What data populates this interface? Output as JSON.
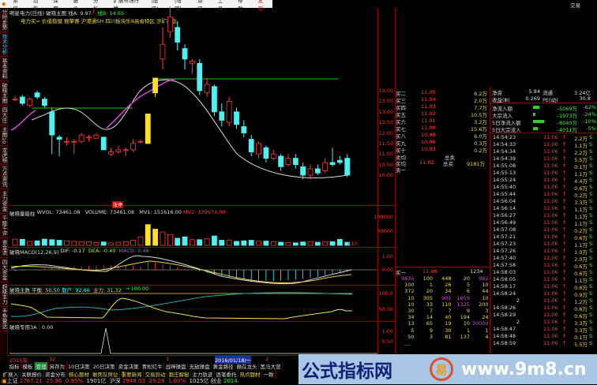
{
  "menu": [
    "系统",
    "功能",
    "深度",
    "报价",
    "分析",
    "扩展市场行情",
    "|股讯|",
    "|增强|",
    "资讯",
    "工具",
    "帮助",
    "发现"
  ],
  "menu_right": "交易",
  "sidebar": [
    "分时走势",
    "技术分析",
    "基本资料",
    "破晓主图",
    "四大庄",
    "主图10",
    "龙虎榜",
    "万点资讯",
    "主力资金",
    "千股千评",
    "资金流",
    "四大资金",
    "超级主力",
    "手势雷达"
  ],
  "chart": {
    "title": "明星电力(日线) 破晓主图",
    "lineA_label": "线A: 9.97",
    "lineB_label": "线B: 14.65",
    "tags": "电力买= 价值稳健 猴擎赛 沪港通SH 四川板块乐9高省特区 涉矿概念",
    "price_ticks": [
      "14.00",
      "13.50",
      "13.00",
      "12.50",
      "12.00",
      "11.50",
      "11.00",
      "10.50",
      "10.00"
    ],
    "candles": [
      [
        13.6,
        13.6,
        13.75,
        13.5
      ],
      [
        13.7,
        13.4,
        13.8,
        13.3
      ],
      [
        13.3,
        13.6,
        13.7,
        13.2
      ],
      [
        13.9,
        13.7,
        14.0,
        13.6
      ],
      [
        13.6,
        13.3,
        13.7,
        13.2
      ],
      [
        13.0,
        11.9,
        13.2,
        11.0
      ],
      [
        11.8,
        11.7,
        11.9,
        10.9
      ],
      [
        11.6,
        11.6,
        11.8,
        11.4
      ],
      [
        11.6,
        11.6,
        11.7,
        11.0
      ],
      [
        11.6,
        11.9,
        12.0,
        11.5
      ],
      [
        11.8,
        11.8,
        11.9,
        11.6
      ],
      [
        11.75,
        11.9,
        12.0,
        11.7
      ],
      [
        11.8,
        11.2,
        11.8,
        11.2
      ],
      [
        11.0,
        11.1,
        11.3,
        10.9
      ],
      [
        11.1,
        11.2,
        11.4,
        11.0
      ],
      [
        11.2,
        11.2,
        11.3,
        10.9
      ],
      [
        11.2,
        11.5,
        11.7,
        11.1
      ],
      [
        11.6,
        11.6,
        11.7,
        11.5
      ],
      [
        11.5,
        12.9,
        12.9,
        11.5,
        "y"
      ],
      [
        13.9,
        14.6,
        14.6,
        13.7,
        "y"
      ],
      [
        15.5,
        16.2,
        17.0,
        15.0
      ],
      [
        16.8,
        17.5,
        18.0,
        16.5
      ],
      [
        17.0,
        16.3,
        17.3,
        15.9
      ],
      [
        16.0,
        15.5,
        16.2,
        15.0
      ],
      [
        15.3,
        15.4,
        15.5,
        14.8
      ],
      [
        15.3,
        14.0,
        15.5,
        13.8
      ],
      [
        13.9,
        14.3,
        14.6,
        13.7
      ],
      [
        14.2,
        13.0,
        14.3,
        12.8
      ],
      [
        13.0,
        12.6,
        13.4,
        12.3
      ],
      [
        12.5,
        13.5,
        13.7,
        12.3
      ],
      [
        13.0,
        12.4,
        13.2,
        12.2
      ],
      [
        12.3,
        12.0,
        12.6,
        11.8
      ],
      [
        11.7,
        11.1,
        11.9,
        10.9
      ],
      [
        11.0,
        11.5,
        11.6,
        10.8
      ],
      [
        11.3,
        10.8,
        11.4,
        10.6
      ],
      [
        10.8,
        11.0,
        11.2,
        10.7
      ],
      [
        10.9,
        10.4,
        11.0,
        10.2
      ],
      [
        10.5,
        10.8,
        11.0,
        10.4
      ],
      [
        10.8,
        10.5,
        11.0,
        10.3
      ],
      [
        10.4,
        10.0,
        10.6,
        9.8
      ],
      [
        10.0,
        10.3,
        10.5,
        9.8
      ],
      [
        10.3,
        10.1,
        10.5,
        10.0
      ],
      [
        10.2,
        10.6,
        10.8,
        10.1
      ],
      [
        10.6,
        10.5,
        11.3,
        10.4
      ],
      [
        10.7,
        10.6,
        10.9,
        10.5
      ],
      [
        10.8,
        10.0,
        11.0,
        9.9
      ]
    ],
    "badge": "涨停"
  },
  "volume": {
    "name": "破晓量能柱",
    "wvol": "WVOL: 73461.08",
    "volume": "VOLUME: 73461.08",
    "mv1": "MV1: 151616.00",
    "mv2": "MV2: 139974.00",
    "ticks": [
      "100000",
      "50000",
      "X10"
    ],
    "values": [
      22000,
      21000,
      14000,
      16000,
      22000,
      20000,
      18000,
      16000,
      14000,
      13000,
      13000,
      10000,
      12000,
      9000,
      11000,
      13000,
      18000,
      30000,
      73000,
      57000,
      47000,
      38000,
      25000,
      30000,
      20000,
      20000,
      24000,
      33000,
      18000,
      19000,
      14000,
      16000,
      18000,
      14000,
      15000,
      13000,
      11000,
      10000,
      9000,
      12000,
      13000,
      11000,
      12000,
      13000,
      21000,
      11000
    ]
  },
  "macd": {
    "name": "破晓MACD(12,26,9)",
    "dif": "DIF: -0.17",
    "dea": "DEA: -0.40",
    "macd": "MACD: 0.46",
    "ticks": [
      "1.00",
      "0.00"
    ]
  },
  "main_force": {
    "name": "破晓主数",
    "balance": "平衡: 50.50",
    "retail": "散户: 92.66",
    "main": "主力: 31.32",
    "level": "→ 100.00",
    "ticks": [
      "100.0",
      "50.00"
    ]
  },
  "special": {
    "name": "破晓专用3A : 0.00",
    "ticks": [
      "1.00",
      "0.50"
    ]
  },
  "date_axis": [
    "2015年",
    ".12",
    "1",
    "2016/01/18/一",
    "2"
  ],
  "toolbar1": [
    "指标",
    "模板",
    "管理",
    "另存为",
    "10日决策",
    "20日决策",
    "资金决策",
    "青松红牛",
    "战神操盘",
    "无敌操盘",
    "黄金路径",
    "巅在龙头",
    "黑马大营"
  ],
  "toolbar2": [
    "扩展入",
    "关联报价",
    "资金分布",
    "核心题材",
    "敢死队席位",
    "重要新闻",
    "交易异动",
    "跟庄解秘",
    "主力轨迹",
    "逐笔委托",
    "热点题材",
    "一致"
  ],
  "status": {
    "sh_label": "上证",
    "sh_value": "2767.21",
    "sh_chg": "25.96",
    "sh_pct": "0.95%",
    "sh_amt": "1901亿",
    "hs_label": "沪深",
    "hs_value": "2948.03",
    "hs_chg": "29.28",
    "hs_pct": "1.00%",
    "hs_amt": "1025亿",
    "cy_label": "创业",
    "cy_value": "2014."
  },
  "orderbook": [
    [
      "买二",
      "11.05",
      "6.2万"
    ],
    [
      "买三",
      "11.04",
      "2.0万"
    ],
    [
      "买四",
      "11.03",
      "7.7万"
    ],
    [
      "买五",
      "11.02",
      "10.5万"
    ],
    [
      "买六",
      "11.01",
      "3.2万"
    ],
    [
      "买七",
      "11.00",
      "15.6万"
    ],
    [
      "买八",
      "10.99",
      "6.0万"
    ],
    [
      "买九",
      "10.96",
      "0.3万"
    ],
    [
      "买十",
      "10.93",
      "0.2万"
    ]
  ],
  "avg": {
    "sell_label": "卖均",
    "sell_total": "总卖",
    "buy_label": "买均",
    "buy_price": "11.02",
    "buy_total_label": "总买",
    "buy_total": "9181万",
    "sell1": "卖一"
  },
  "fund": {
    "rows": [
      [
        "净资",
        "5.84",
        "流通",
        "3.24亿"
      ],
      [
        "收益(Ⅲ)",
        "0.269",
        "PE(动)",
        "30.8"
      ]
    ],
    "flows": [
      [
        "净流入额",
        "-5069万",
        "-62%"
      ],
      [
        "大宗流入",
        "-1973万",
        "-24%"
      ],
      [
        "5日净流入额",
        "-8040万",
        "-10%"
      ],
      [
        "5日大宗流入",
        "-4011万",
        "-5%"
      ]
    ]
  },
  "ticks": [
    [
      "14:54:23",
      "11.06",
      "2.2万"
    ],
    [
      "14:54:33",
      "11.06",
      "1.1万"
    ],
    [
      "14:54:34",
      "11.06",
      "2.2万"
    ],
    [
      "14:54:39",
      "11.06",
      "5.5万"
    ],
    [
      "14:55:08",
      "11.06",
      "0.1万"
    ],
    [
      "14:55:13",
      "11.06",
      "1.1万"
    ],
    [
      "14:55:24",
      "11.06",
      "4.4万"
    ],
    [
      "14:55:40",
      "11.06",
      "0.6万"
    ],
    [
      "14:55:44",
      "11.06",
      "0.2万"
    ],
    [
      "14:56:04",
      "11.06",
      "3.3万"
    ],
    [
      "14:56:14",
      "11.06",
      "1.1万"
    ],
    [
      "14:56:27",
      "11.06",
      "1.1万"
    ],
    [
      "14:56:49",
      "11.06",
      "1.1万"
    ],
    [
      "14:57:08",
      "11.06",
      "0.2万"
    ],
    [
      "14:57:21",
      "11.06",
      "0.6万"
    ],
    [
      "14:57:23",
      "11.06",
      "1.1万"
    ],
    [
      "14:57:26",
      "11.06",
      "1.0万"
    ],
    [
      "14:57:40",
      "11.06",
      "2.0万"
    ],
    [
      "14:57:58",
      "11.06",
      "0.6万"
    ],
    [
      "14:58:03",
      "11.06",
      "0.6万"
    ],
    [
      "14:58:05",
      "11.06",
      "1.1万"
    ],
    [
      "14:58:17",
      "11.06",
      "0.6万"
    ],
    [
      "14:58:24",
      "11.06",
      "0.9万"
    ],
    [
      "2",
      "11.06",
      "1.2万"
    ],
    [
      "14:58:26",
      "11.06",
      "0.6万"
    ],
    [
      "14:58:29",
      "11.06",
      "0.6万"
    ],
    [
      "2",
      "11.06",
      "3.3万"
    ],
    [
      "14:58:47",
      "11.06",
      "3.3万"
    ],
    [
      "14:58:48",
      "11.06",
      "0.1万"
    ],
    [
      "14:58:59",
      "11.06",
      "5.5万"
    ]
  ],
  "tick_flag": "S",
  "queue": {
    "label": "买一",
    "price": "11.06",
    "total": "1234",
    "rows": [
      [
        "9835",
        "100",
        "448",
        "20",
        "982"
      ],
      [
        "100",
        "1",
        "26",
        "5",
        "10"
      ],
      [
        "372",
        "20",
        "34",
        "6",
        "44"
      ],
      [
        "10",
        "305",
        "901",
        "1859",
        "10"
      ],
      [
        "10",
        "33",
        "110",
        "1325",
        "200"
      ],
      [
        "30",
        "7",
        "7",
        "9",
        "3"
      ],
      [
        "34",
        "14",
        "40",
        "194",
        "24"
      ],
      [
        "13",
        "65",
        "19",
        "10",
        "10000"
      ],
      [
        "5",
        "9",
        "30",
        "1",
        "1"
      ],
      [
        "50",
        "3",
        "81",
        "137",
        "4"
      ]
    ],
    "more": "...."
  },
  "watermark": {
    "cn": "公式指标网",
    "logo": "易",
    "url": "www.9m8.cn"
  },
  "colors": {
    "up": "#ff3b3b",
    "down": "#4ff0f0",
    "limit": "#ffe020",
    "grid": "#8a0000"
  }
}
